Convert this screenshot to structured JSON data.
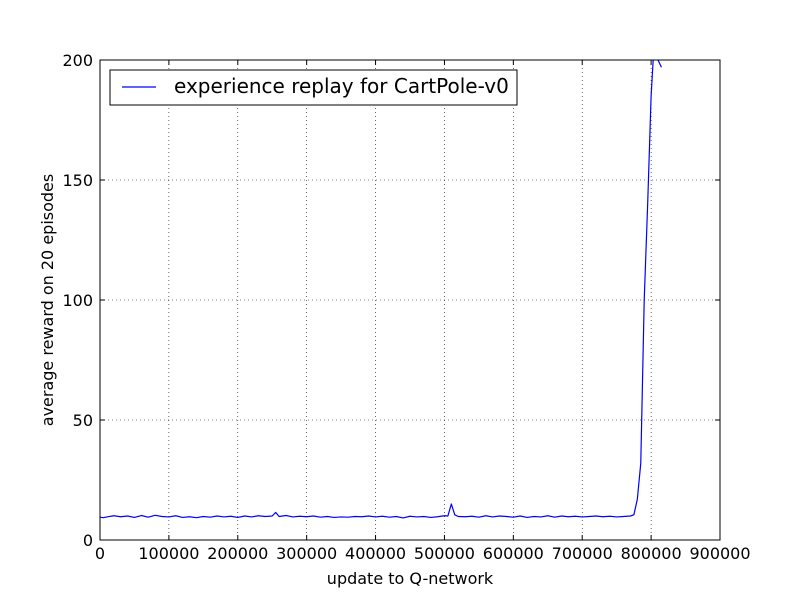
{
  "chart_data": {
    "type": "line",
    "title": "",
    "xlabel": "update to Q-network",
    "ylabel": "average reward on 20 episodes",
    "xlim": [
      0,
      900000
    ],
    "ylim": [
      0,
      200
    ],
    "x_ticks": [
      0,
      100000,
      200000,
      300000,
      400000,
      500000,
      600000,
      700000,
      800000,
      900000
    ],
    "x_tick_labels": [
      "0",
      "100000",
      "200000",
      "300000",
      "400000",
      "500000",
      "600000",
      "700000",
      "800000",
      "900000"
    ],
    "y_ticks": [
      0,
      50,
      100,
      150,
      200
    ],
    "y_tick_labels": [
      "0",
      "50",
      "100",
      "150",
      "200"
    ],
    "grid": true,
    "legend_position": "top-left",
    "series": [
      {
        "name": "experience replay for CartPole-v0",
        "color": "#0000ff",
        "x": [
          0,
          5000,
          10000,
          20000,
          30000,
          40000,
          50000,
          60000,
          70000,
          80000,
          90000,
          100000,
          110000,
          120000,
          130000,
          140000,
          150000,
          160000,
          170000,
          180000,
          190000,
          200000,
          210000,
          220000,
          230000,
          240000,
          250000,
          255000,
          260000,
          270000,
          280000,
          290000,
          300000,
          310000,
          320000,
          330000,
          340000,
          350000,
          360000,
          370000,
          380000,
          390000,
          400000,
          410000,
          420000,
          430000,
          440000,
          450000,
          460000,
          470000,
          480000,
          490000,
          500000,
          505000,
          510000,
          515000,
          520000,
          530000,
          540000,
          550000,
          560000,
          570000,
          580000,
          590000,
          600000,
          610000,
          620000,
          630000,
          640000,
          650000,
          660000,
          670000,
          680000,
          690000,
          700000,
          710000,
          720000,
          730000,
          740000,
          750000,
          760000,
          770000,
          775000,
          780000,
          785000,
          790000,
          795000,
          800000,
          803000,
          806000,
          810000,
          815000
        ],
        "values": [
          9.5,
          9.3,
          9.6,
          10.1,
          9.7,
          10.0,
          9.4,
          10.2,
          9.5,
          10.3,
          9.8,
          9.6,
          10.1,
          9.4,
          9.7,
          9.3,
          9.8,
          9.5,
          10.0,
          9.6,
          9.9,
          9.4,
          10.0,
          9.6,
          10.1,
          9.8,
          10.0,
          11.5,
          9.8,
          10.2,
          9.6,
          9.9,
          9.7,
          10.0,
          9.5,
          9.8,
          9.4,
          9.6,
          9.5,
          9.8,
          9.7,
          10.0,
          9.6,
          9.9,
          9.5,
          9.8,
          9.2,
          9.9,
          9.6,
          9.8,
          9.4,
          9.7,
          10.1,
          10.0,
          15.0,
          10.5,
          9.8,
          9.7,
          9.9,
          9.5,
          10.1,
          9.6,
          10.0,
          9.8,
          9.5,
          10.0,
          9.4,
          9.8,
          9.6,
          10.1,
          9.5,
          10.0,
          9.7,
          9.9,
          9.6,
          9.8,
          10.0,
          9.7,
          9.9,
          9.6,
          9.8,
          10.0,
          10.5,
          17.0,
          32.0,
          100.0,
          140.0,
          185.0,
          200.0,
          203.0,
          200.0,
          197.0
        ]
      }
    ]
  }
}
